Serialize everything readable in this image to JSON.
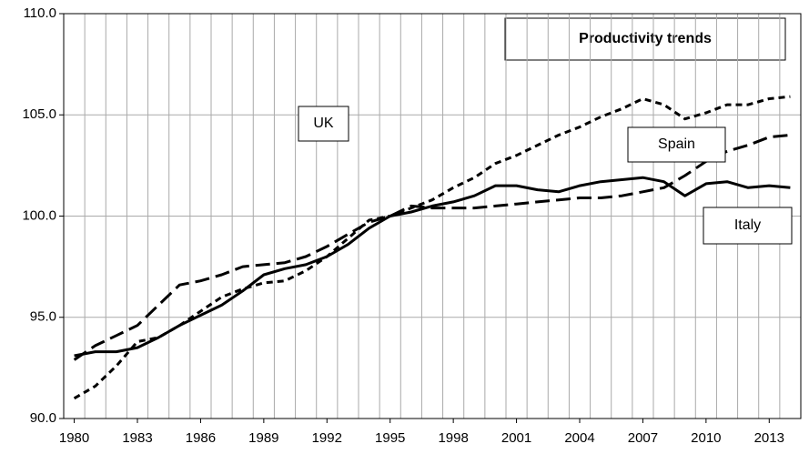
{
  "chart_data": {
    "type": "line",
    "title": "Productivity trends",
    "categories": [
      "1980",
      null,
      null,
      "1983",
      null,
      null,
      "1986",
      null,
      null,
      "1989",
      null,
      null,
      "1992",
      null,
      null,
      "1995",
      null,
      null,
      "1998",
      null,
      null,
      "2001",
      null,
      null,
      "2004",
      null,
      null,
      "2007",
      null,
      null,
      "2010",
      null,
      null,
      "2013",
      null
    ],
    "series": [
      {
        "name": "Italy",
        "color": "#000000",
        "dash": "solid",
        "values": [
          93.1,
          93.3,
          93.3,
          93.5,
          94.0,
          94.6,
          95.1,
          95.6,
          96.3,
          97.1,
          97.4,
          97.6,
          98.0,
          98.6,
          99.4,
          100.0,
          100.2,
          100.5,
          100.7,
          101.0,
          101.5,
          101.5,
          101.3,
          101.2,
          101.5,
          101.7,
          101.8,
          101.9,
          101.7,
          101.0,
          101.6,
          101.7,
          101.4,
          101.5,
          101.4
        ]
      },
      {
        "name": "UK",
        "color": "#000000",
        "dash": "short",
        "values": [
          91.0,
          91.6,
          92.6,
          93.8,
          94.0,
          94.6,
          95.3,
          96.0,
          96.4,
          96.7,
          96.8,
          97.3,
          98.0,
          98.9,
          99.8,
          100.0,
          100.4,
          100.8,
          101.4,
          101.9,
          102.6,
          103.0,
          103.5,
          104.0,
          104.4,
          104.9,
          105.3,
          105.8,
          105.5,
          104.8,
          105.1,
          105.5,
          105.5,
          105.8,
          105.9
        ]
      },
      {
        "name": "Spain",
        "color": "#000000",
        "dash": "long",
        "values": [
          92.9,
          93.6,
          94.1,
          94.6,
          95.6,
          96.6,
          96.8,
          97.1,
          97.5,
          97.6,
          97.7,
          98.0,
          98.5,
          99.1,
          99.7,
          100.0,
          100.5,
          100.4,
          100.4,
          100.4,
          100.5,
          100.6,
          100.7,
          100.8,
          100.9,
          100.9,
          101.0,
          101.2,
          101.4,
          102.0,
          102.7,
          103.2,
          103.5,
          103.9,
          104.0
        ]
      }
    ],
    "ylim": [
      90,
      110
    ],
    "yticks": [
      {
        "value": 90,
        "label": "90.0"
      },
      {
        "value": 95,
        "label": "95.0"
      },
      {
        "value": 100,
        "label": "100.0"
      },
      {
        "value": 105,
        "label": "105.0"
      },
      {
        "value": 110,
        "label": "110.0"
      }
    ],
    "grid": true
  }
}
